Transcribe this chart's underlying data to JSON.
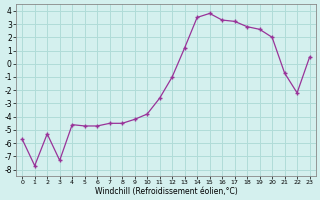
{
  "x_vals": [
    0,
    1,
    2,
    3,
    4,
    5,
    6,
    7,
    8,
    9,
    10,
    11,
    12,
    13,
    14,
    15,
    16,
    17,
    18,
    19,
    20,
    21,
    22,
    23
  ],
  "y_vals": [
    -5.7,
    -7.7,
    -5.3,
    -7.3,
    -4.6,
    -4.7,
    -4.7,
    -4.5,
    -4.5,
    -4.2,
    -3.8,
    -2.6,
    -1.0,
    1.2,
    3.5,
    3.8,
    3.3,
    3.2,
    2.8,
    2.6,
    2.0,
    -0.7,
    -2.2,
    0.5
  ],
  "line_color": "#993399",
  "marker": "+",
  "bg_color": "#d4f0ee",
  "grid_color": "#b0dcd8",
  "xlabel": "Windchill (Refroidissement éolien,°C)",
  "ylim": [
    -8.5,
    4.5
  ],
  "xlim": [
    -0.5,
    23.5
  ],
  "yticks": [
    -8,
    -7,
    -6,
    -5,
    -4,
    -3,
    -2,
    -1,
    0,
    1,
    2,
    3,
    4
  ],
  "xticks": [
    0,
    1,
    2,
    3,
    4,
    5,
    6,
    7,
    8,
    9,
    10,
    11,
    12,
    13,
    14,
    15,
    16,
    17,
    18,
    19,
    20,
    21,
    22,
    23
  ]
}
